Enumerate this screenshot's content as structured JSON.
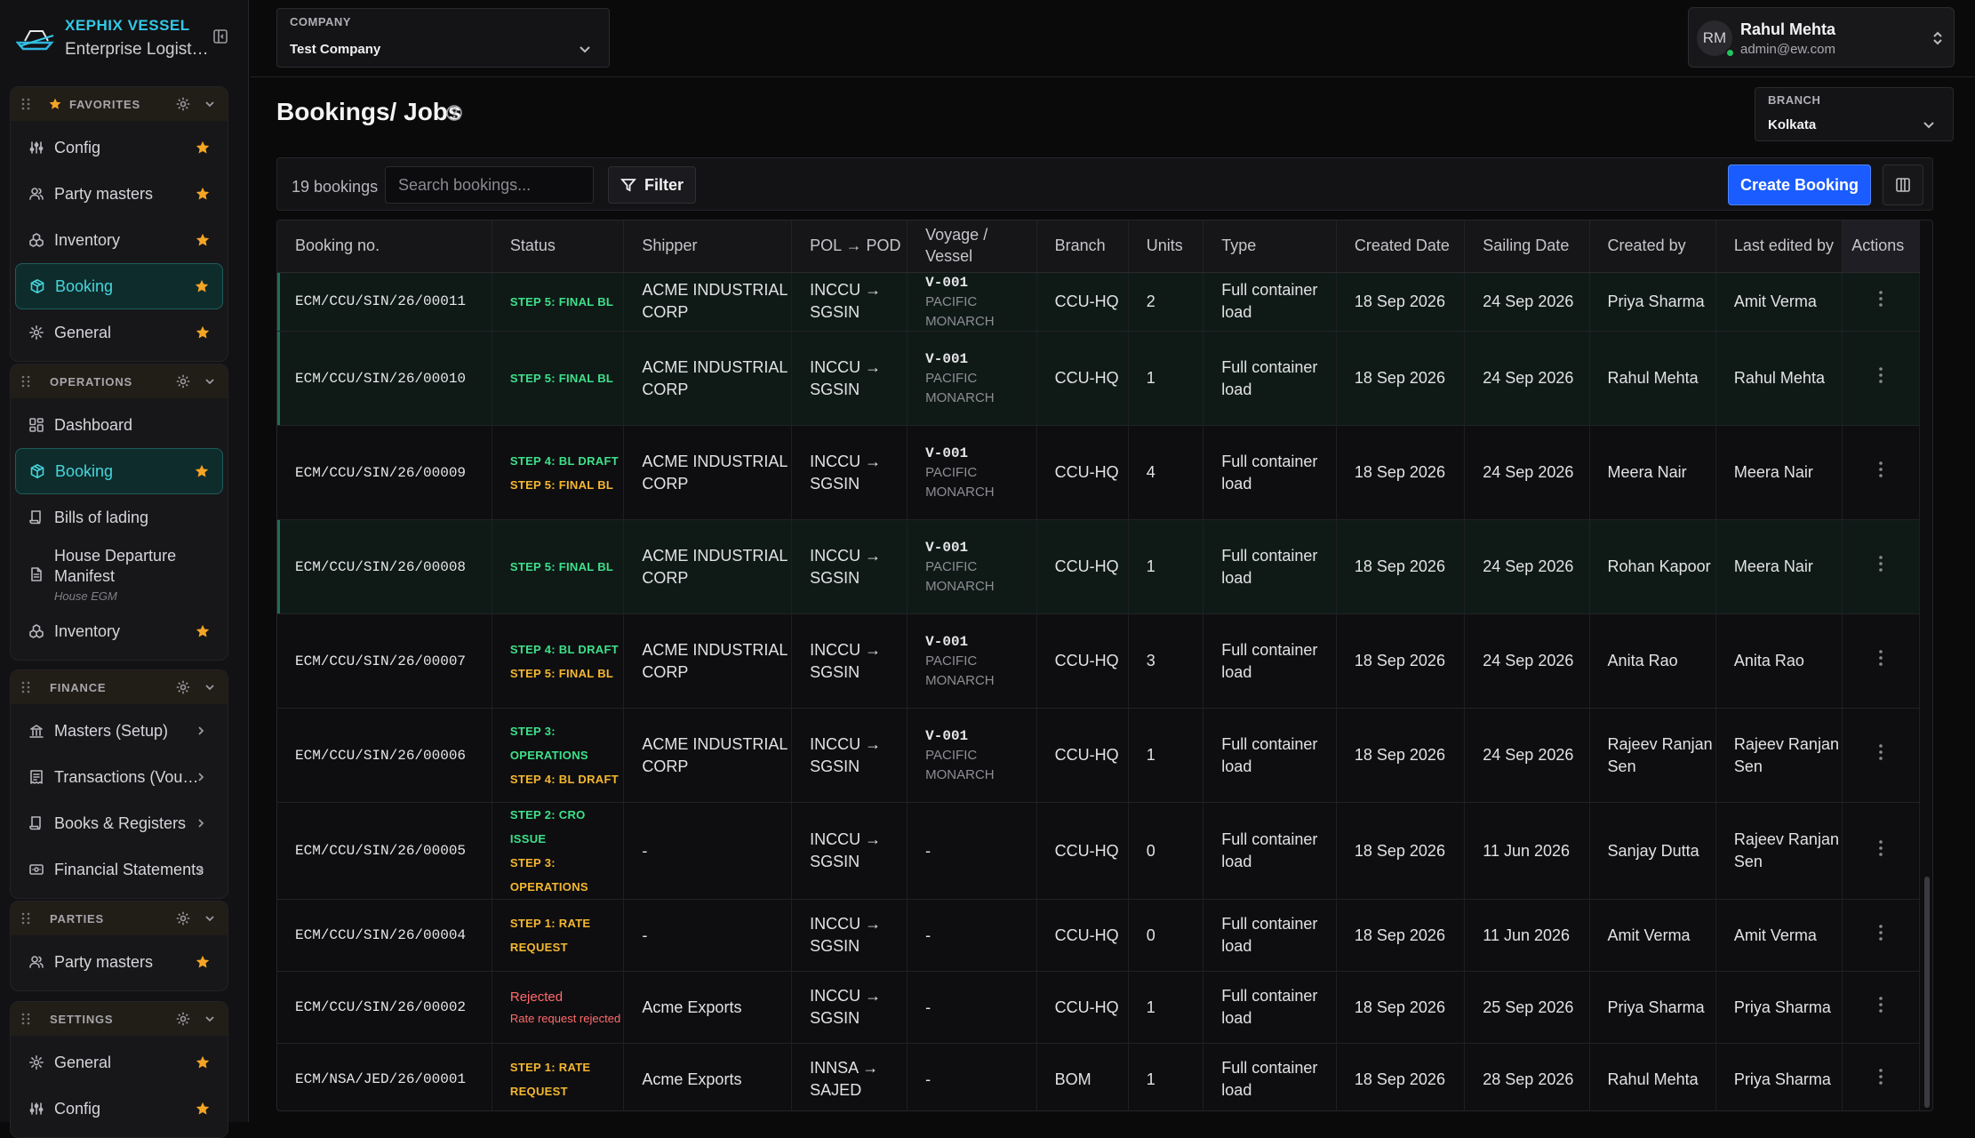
{
  "brand": {
    "name": "XEPHIX VESSEL",
    "subtitle": "Enterprise Logistics"
  },
  "sidebar": {
    "favorites": {
      "title": "FAVORITES",
      "items": [
        {
          "label": "Config",
          "icon": "sliders-icon",
          "starred": true
        },
        {
          "label": "Party masters",
          "icon": "users-icon",
          "starred": true
        },
        {
          "label": "Inventory",
          "icon": "boxes-icon",
          "starred": true
        },
        {
          "label": "Booking",
          "icon": "package-icon",
          "starred": true,
          "active": true
        },
        {
          "label": "General",
          "icon": "gear-icon",
          "starred": true
        }
      ]
    },
    "operations": {
      "title": "OPERATIONS",
      "items": [
        {
          "label": "Dashboard",
          "icon": "dashboard-icon"
        },
        {
          "label": "Booking",
          "icon": "package-icon",
          "starred": true,
          "active": true
        },
        {
          "label": "Bills of lading",
          "icon": "scroll-icon"
        },
        {
          "label": "House Departure Manifest",
          "sublabel": "House EGM",
          "icon": "document-icon"
        },
        {
          "label": "Inventory",
          "icon": "boxes-icon",
          "starred": true
        }
      ]
    },
    "finance": {
      "title": "FINANCE",
      "items": [
        {
          "label": "Masters (Setup)",
          "icon": "ledger-icon"
        },
        {
          "label": "Transactions (Vouchers)",
          "icon": "transactions-icon"
        },
        {
          "label": "Books & Registers",
          "icon": "book-icon"
        },
        {
          "label": "Financial Statements",
          "icon": "statement-icon"
        }
      ]
    },
    "parties": {
      "title": "PARTIES",
      "items": [
        {
          "label": "Party masters",
          "icon": "users-icon",
          "starred": true
        }
      ]
    },
    "settings": {
      "title": "SETTINGS",
      "items": [
        {
          "label": "General",
          "icon": "gear-icon",
          "starred": true
        },
        {
          "label": "Config",
          "icon": "sliders-icon",
          "starred": true
        }
      ]
    }
  },
  "header": {
    "company_label": "COMPANY",
    "company_value": "Test Company",
    "user": {
      "initials": "RM",
      "name": "Rahul Mehta",
      "email": "admin@ew.com"
    },
    "page_title": "Bookings/ Jobs",
    "branch_label": "BRANCH",
    "branch_value": "Kolkata"
  },
  "toolbar": {
    "count": "19 bookings",
    "search_placeholder": "Search bookings...",
    "filter_label": "Filter",
    "create_label": "Create Booking"
  },
  "colors": {
    "accent": "#1a5cff",
    "active_nav": "#45d6dc",
    "step_green": "#3ee08a",
    "step_amber": "#f5b730",
    "rejected": "#ff6b6b",
    "star": "#f5a524"
  },
  "table": {
    "columns": [
      "Booking no.",
      "Status",
      "Shipper",
      "POL → POD",
      "Voyage / Vessel",
      "Branch",
      "Units",
      "Type",
      "Created Date",
      "Sailing Date",
      "Created by",
      "Last edited by",
      "Actions"
    ],
    "rows": [
      {
        "booking_no": "ECM/CCU/SIN/26/00011",
        "highlight": true,
        "status": [
          {
            "text": "STEP 5: FINAL BL",
            "color": "green"
          }
        ],
        "shipper": "ACME INDUSTRIAL CORP",
        "route": "INCCU → SGSIN",
        "voyage": "V-001",
        "vessel": "PACIFIC MONARCH",
        "branch": "CCU-HQ",
        "units": "2",
        "type": "Full container load",
        "created": "18 Sep 2026",
        "sailing": "24 Sep 2026",
        "created_by": "Priya Sharma",
        "edited_by": "Amit Verma"
      },
      {
        "booking_no": "ECM/CCU/SIN/26/00010",
        "highlight": true,
        "status": [
          {
            "text": "STEP 5: FINAL BL",
            "color": "green"
          }
        ],
        "shipper": "ACME INDUSTRIAL CORP",
        "route": "INCCU → SGSIN",
        "voyage": "V-001",
        "vessel": "PACIFIC MONARCH",
        "branch": "CCU-HQ",
        "units": "1",
        "type": "Full container load",
        "created": "18 Sep 2026",
        "sailing": "24 Sep 2026",
        "created_by": "Rahul Mehta",
        "edited_by": "Rahul Mehta"
      },
      {
        "booking_no": "ECM/CCU/SIN/26/00009",
        "highlight": false,
        "status": [
          {
            "text": "STEP 4: BL DRAFT",
            "color": "green"
          },
          {
            "text": "STEP 5: FINAL BL",
            "color": "amber"
          }
        ],
        "shipper": "ACME INDUSTRIAL CORP",
        "route": "INCCU → SGSIN",
        "voyage": "V-001",
        "vessel": "PACIFIC MONARCH",
        "branch": "CCU-HQ",
        "units": "4",
        "type": "Full container load",
        "created": "18 Sep 2026",
        "sailing": "24 Sep 2026",
        "created_by": "Meera Nair",
        "edited_by": "Meera Nair"
      },
      {
        "booking_no": "ECM/CCU/SIN/26/00008",
        "highlight": true,
        "status": [
          {
            "text": "STEP 5: FINAL BL",
            "color": "green"
          }
        ],
        "shipper": "ACME INDUSTRIAL CORP",
        "route": "INCCU → SGSIN",
        "voyage": "V-001",
        "vessel": "PACIFIC MONARCH",
        "branch": "CCU-HQ",
        "units": "1",
        "type": "Full container load",
        "created": "18 Sep 2026",
        "sailing": "24 Sep 2026",
        "created_by": "Rohan Kapoor",
        "edited_by": "Meera Nair"
      },
      {
        "booking_no": "ECM/CCU/SIN/26/00007",
        "highlight": false,
        "status": [
          {
            "text": "STEP 4: BL DRAFT",
            "color": "green"
          },
          {
            "text": "STEP 5: FINAL BL",
            "color": "amber"
          }
        ],
        "shipper": "ACME INDUSTRIAL CORP",
        "route": "INCCU → SGSIN",
        "voyage": "V-001",
        "vessel": "PACIFIC MONARCH",
        "branch": "CCU-HQ",
        "units": "3",
        "type": "Full container load",
        "created": "18 Sep 2026",
        "sailing": "24 Sep 2026",
        "created_by": "Anita Rao",
        "edited_by": "Anita Rao"
      },
      {
        "booking_no": "ECM/CCU/SIN/26/00006",
        "highlight": false,
        "status": [
          {
            "text": "STEP 3: OPERATIONS",
            "color": "green"
          },
          {
            "text": "STEP 4: BL DRAFT",
            "color": "amber"
          }
        ],
        "shipper": "ACME INDUSTRIAL CORP",
        "route": "INCCU → SGSIN",
        "voyage": "V-001",
        "vessel": "PACIFIC MONARCH",
        "branch": "CCU-HQ",
        "units": "1",
        "type": "Full container load",
        "created": "18 Sep 2026",
        "sailing": "24 Sep 2026",
        "created_by": "Rajeev Ranjan Sen",
        "edited_by": "Rajeev Ranjan Sen"
      },
      {
        "booking_no": "ECM/CCU/SIN/26/00005",
        "highlight": false,
        "status": [
          {
            "text": "STEP 2: CRO ISSUE",
            "color": "green"
          },
          {
            "text": "STEP 3: OPERATIONS",
            "color": "amber"
          }
        ],
        "shipper": "-",
        "route": "INCCU → SGSIN",
        "voyage": "-",
        "vessel": "",
        "branch": "CCU-HQ",
        "units": "0",
        "type": "Full container load",
        "created": "18 Sep 2026",
        "sailing": "11 Jun 2026",
        "created_by": "Sanjay Dutta",
        "edited_by": "Rajeev Ranjan Sen"
      },
      {
        "booking_no": "ECM/CCU/SIN/26/00004",
        "highlight": false,
        "status": [
          {
            "text": "STEP 1: RATE REQUEST",
            "color": "amber"
          }
        ],
        "shipper": "-",
        "route": "INCCU → SGSIN",
        "voyage": "-",
        "vessel": "",
        "branch": "CCU-HQ",
        "units": "0",
        "type": "Full container load",
        "created": "18 Sep 2026",
        "sailing": "11 Jun 2026",
        "created_by": "Amit Verma",
        "edited_by": "Amit Verma"
      },
      {
        "booking_no": "ECM/CCU/SIN/26/00002",
        "highlight": false,
        "rejected": true,
        "status_text": "Rejected",
        "status_sub": "Rate request rejected",
        "status": [],
        "shipper": "Acme Exports",
        "route": "INCCU → SGSIN",
        "voyage": "-",
        "vessel": "",
        "branch": "CCU-HQ",
        "units": "1",
        "type": "Full container load",
        "created": "18 Sep 2026",
        "sailing": "25 Sep 2026",
        "created_by": "Priya Sharma",
        "edited_by": "Priya Sharma"
      },
      {
        "booking_no": "ECM/NSA/JED/26/00001",
        "highlight": false,
        "status": [
          {
            "text": "STEP 1: RATE REQUEST",
            "color": "amber"
          }
        ],
        "shipper": "Acme Exports",
        "route": "INNSA → SAJED",
        "voyage": "-",
        "vessel": "",
        "branch": "BOM",
        "units": "1",
        "type": "Full container load",
        "created": "18 Sep 2026",
        "sailing": "28 Sep 2026",
        "created_by": "Rahul Mehta",
        "edited_by": "Priya Sharma"
      }
    ]
  }
}
